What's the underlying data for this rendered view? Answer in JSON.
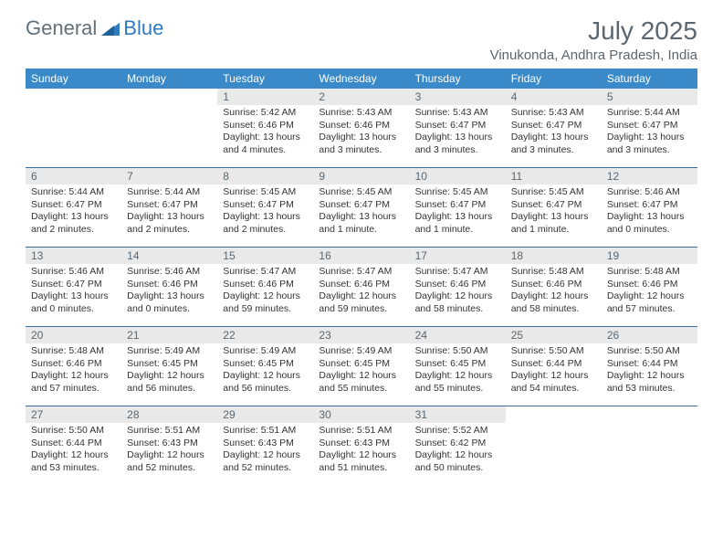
{
  "logo": {
    "part1": "General",
    "part2": "Blue"
  },
  "title": "July 2025",
  "location": "Vinukonda, Andhra Pradesh, India",
  "colors": {
    "header_bg": "#3a89c9",
    "header_text": "#ffffff",
    "daynum_bg": "#e9e9e9",
    "text_muted": "#5a6670",
    "rule": "#3a6ea5"
  },
  "weekdays": [
    "Sunday",
    "Monday",
    "Tuesday",
    "Wednesday",
    "Thursday",
    "Friday",
    "Saturday"
  ],
  "weeks": [
    [
      null,
      null,
      {
        "n": "1",
        "sr": "Sunrise: 5:42 AM",
        "ss": "Sunset: 6:46 PM",
        "d1": "Daylight: 13 hours",
        "d2": "and 4 minutes."
      },
      {
        "n": "2",
        "sr": "Sunrise: 5:43 AM",
        "ss": "Sunset: 6:46 PM",
        "d1": "Daylight: 13 hours",
        "d2": "and 3 minutes."
      },
      {
        "n": "3",
        "sr": "Sunrise: 5:43 AM",
        "ss": "Sunset: 6:47 PM",
        "d1": "Daylight: 13 hours",
        "d2": "and 3 minutes."
      },
      {
        "n": "4",
        "sr": "Sunrise: 5:43 AM",
        "ss": "Sunset: 6:47 PM",
        "d1": "Daylight: 13 hours",
        "d2": "and 3 minutes."
      },
      {
        "n": "5",
        "sr": "Sunrise: 5:44 AM",
        "ss": "Sunset: 6:47 PM",
        "d1": "Daylight: 13 hours",
        "d2": "and 3 minutes."
      }
    ],
    [
      {
        "n": "6",
        "sr": "Sunrise: 5:44 AM",
        "ss": "Sunset: 6:47 PM",
        "d1": "Daylight: 13 hours",
        "d2": "and 2 minutes."
      },
      {
        "n": "7",
        "sr": "Sunrise: 5:44 AM",
        "ss": "Sunset: 6:47 PM",
        "d1": "Daylight: 13 hours",
        "d2": "and 2 minutes."
      },
      {
        "n": "8",
        "sr": "Sunrise: 5:45 AM",
        "ss": "Sunset: 6:47 PM",
        "d1": "Daylight: 13 hours",
        "d2": "and 2 minutes."
      },
      {
        "n": "9",
        "sr": "Sunrise: 5:45 AM",
        "ss": "Sunset: 6:47 PM",
        "d1": "Daylight: 13 hours",
        "d2": "and 1 minute."
      },
      {
        "n": "10",
        "sr": "Sunrise: 5:45 AM",
        "ss": "Sunset: 6:47 PM",
        "d1": "Daylight: 13 hours",
        "d2": "and 1 minute."
      },
      {
        "n": "11",
        "sr": "Sunrise: 5:45 AM",
        "ss": "Sunset: 6:47 PM",
        "d1": "Daylight: 13 hours",
        "d2": "and 1 minute."
      },
      {
        "n": "12",
        "sr": "Sunrise: 5:46 AM",
        "ss": "Sunset: 6:47 PM",
        "d1": "Daylight: 13 hours",
        "d2": "and 0 minutes."
      }
    ],
    [
      {
        "n": "13",
        "sr": "Sunrise: 5:46 AM",
        "ss": "Sunset: 6:47 PM",
        "d1": "Daylight: 13 hours",
        "d2": "and 0 minutes."
      },
      {
        "n": "14",
        "sr": "Sunrise: 5:46 AM",
        "ss": "Sunset: 6:46 PM",
        "d1": "Daylight: 13 hours",
        "d2": "and 0 minutes."
      },
      {
        "n": "15",
        "sr": "Sunrise: 5:47 AM",
        "ss": "Sunset: 6:46 PM",
        "d1": "Daylight: 12 hours",
        "d2": "and 59 minutes."
      },
      {
        "n": "16",
        "sr": "Sunrise: 5:47 AM",
        "ss": "Sunset: 6:46 PM",
        "d1": "Daylight: 12 hours",
        "d2": "and 59 minutes."
      },
      {
        "n": "17",
        "sr": "Sunrise: 5:47 AM",
        "ss": "Sunset: 6:46 PM",
        "d1": "Daylight: 12 hours",
        "d2": "and 58 minutes."
      },
      {
        "n": "18",
        "sr": "Sunrise: 5:48 AM",
        "ss": "Sunset: 6:46 PM",
        "d1": "Daylight: 12 hours",
        "d2": "and 58 minutes."
      },
      {
        "n": "19",
        "sr": "Sunrise: 5:48 AM",
        "ss": "Sunset: 6:46 PM",
        "d1": "Daylight: 12 hours",
        "d2": "and 57 minutes."
      }
    ],
    [
      {
        "n": "20",
        "sr": "Sunrise: 5:48 AM",
        "ss": "Sunset: 6:46 PM",
        "d1": "Daylight: 12 hours",
        "d2": "and 57 minutes."
      },
      {
        "n": "21",
        "sr": "Sunrise: 5:49 AM",
        "ss": "Sunset: 6:45 PM",
        "d1": "Daylight: 12 hours",
        "d2": "and 56 minutes."
      },
      {
        "n": "22",
        "sr": "Sunrise: 5:49 AM",
        "ss": "Sunset: 6:45 PM",
        "d1": "Daylight: 12 hours",
        "d2": "and 56 minutes."
      },
      {
        "n": "23",
        "sr": "Sunrise: 5:49 AM",
        "ss": "Sunset: 6:45 PM",
        "d1": "Daylight: 12 hours",
        "d2": "and 55 minutes."
      },
      {
        "n": "24",
        "sr": "Sunrise: 5:50 AM",
        "ss": "Sunset: 6:45 PM",
        "d1": "Daylight: 12 hours",
        "d2": "and 55 minutes."
      },
      {
        "n": "25",
        "sr": "Sunrise: 5:50 AM",
        "ss": "Sunset: 6:44 PM",
        "d1": "Daylight: 12 hours",
        "d2": "and 54 minutes."
      },
      {
        "n": "26",
        "sr": "Sunrise: 5:50 AM",
        "ss": "Sunset: 6:44 PM",
        "d1": "Daylight: 12 hours",
        "d2": "and 53 minutes."
      }
    ],
    [
      {
        "n": "27",
        "sr": "Sunrise: 5:50 AM",
        "ss": "Sunset: 6:44 PM",
        "d1": "Daylight: 12 hours",
        "d2": "and 53 minutes."
      },
      {
        "n": "28",
        "sr": "Sunrise: 5:51 AM",
        "ss": "Sunset: 6:43 PM",
        "d1": "Daylight: 12 hours",
        "d2": "and 52 minutes."
      },
      {
        "n": "29",
        "sr": "Sunrise: 5:51 AM",
        "ss": "Sunset: 6:43 PM",
        "d1": "Daylight: 12 hours",
        "d2": "and 52 minutes."
      },
      {
        "n": "30",
        "sr": "Sunrise: 5:51 AM",
        "ss": "Sunset: 6:43 PM",
        "d1": "Daylight: 12 hours",
        "d2": "and 51 minutes."
      },
      {
        "n": "31",
        "sr": "Sunrise: 5:52 AM",
        "ss": "Sunset: 6:42 PM",
        "d1": "Daylight: 12 hours",
        "d2": "and 50 minutes."
      },
      null,
      null
    ]
  ]
}
